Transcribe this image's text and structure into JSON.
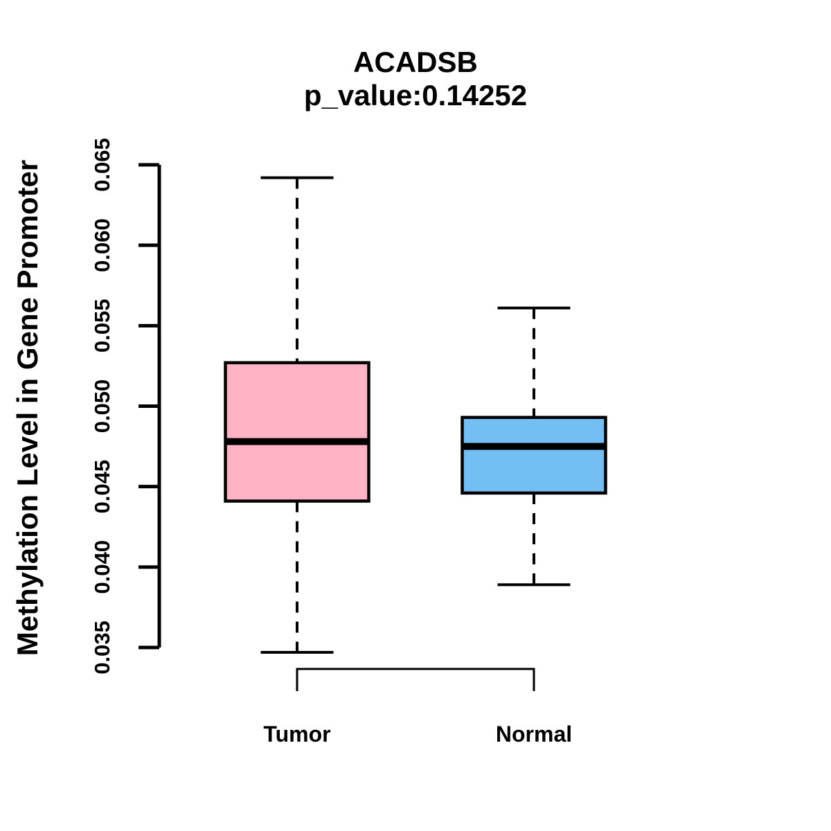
{
  "figure": {
    "background": "#ffffff",
    "text_color": "#000000"
  },
  "chart_data": {
    "type": "boxplot",
    "title": "ACADSB",
    "subtitle": "p_value:0.14252",
    "ylabel": "Methylation Level in Gene Promoter",
    "xlabel": "",
    "categories": [
      "Tumor",
      "Normal"
    ],
    "series": [
      {
        "name": "Tumor",
        "color": "#ffb3c5",
        "min": 0.0347,
        "q1": 0.0441,
        "median": 0.0478,
        "q3": 0.0527,
        "max": 0.0642
      },
      {
        "name": "Normal",
        "color": "#73bff4",
        "min": 0.0389,
        "q1": 0.0446,
        "median": 0.0475,
        "q3": 0.0493,
        "max": 0.0561
      }
    ],
    "ylim": [
      0.035,
      0.065
    ],
    "yticks": [
      0.035,
      0.04,
      0.045,
      0.05,
      0.055,
      0.06,
      0.065
    ],
    "ytick_labels": [
      "0.035",
      "0.040",
      "0.045",
      "0.050",
      "0.055",
      "0.060",
      "0.065"
    ],
    "box_border_color": "#000000",
    "median_color": "#000000",
    "whisker_style": "dashed",
    "comparison_bracket": {
      "from": "Tumor",
      "to": "Normal"
    },
    "legend": "none",
    "grid": false
  }
}
